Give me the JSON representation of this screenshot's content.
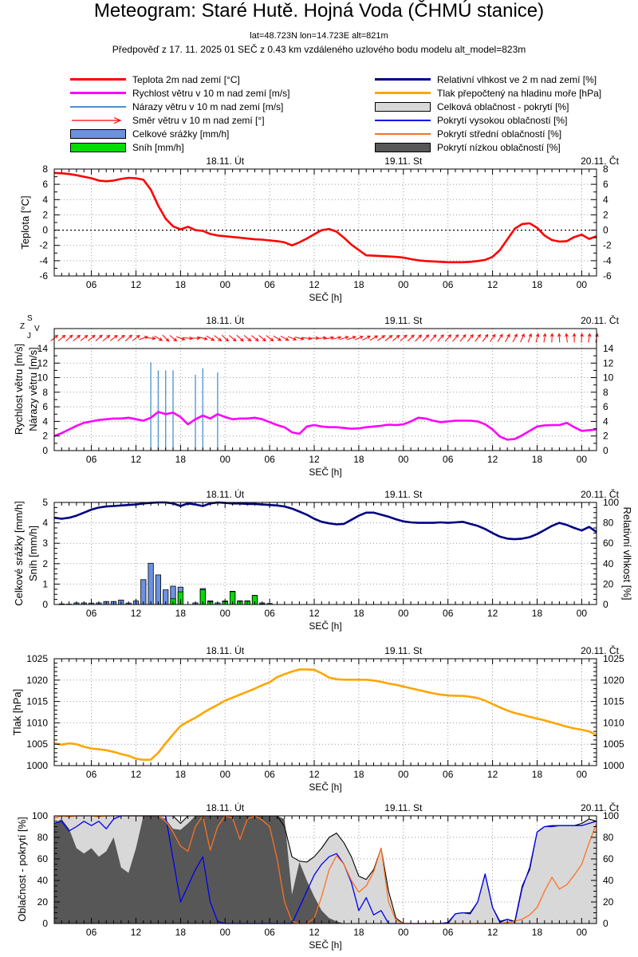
{
  "header": {
    "title": "Meteogram: Staré Hutě. Hojná Voda (ČHMÚ stanice)",
    "subtitle1": "lat=48.723N lon=14.723E alt=821m",
    "subtitle2": "Předpověď z 17. 11. 2025 01 SEČ z 0.43 km vzdáleného uzlového bodu modelu alt_model=823m"
  },
  "compass": {
    "north": "S",
    "east": "V",
    "south": "J",
    "west": "Z"
  },
  "legend": {
    "left": [
      {
        "name": "temperature",
        "label": "Teplota 2m nad zemí [°C]",
        "color": "#ff0000",
        "swatch": "line"
      },
      {
        "name": "wind-speed",
        "label": "Rychlost větru v 10 m nad zemí [m/s]",
        "color": "#ff00ff",
        "swatch": "line"
      },
      {
        "name": "wind-gusts",
        "label": "Nárazy větru v 10 m nad zemí [m/s]",
        "color": "#4a90d2",
        "swatch": "line-thin"
      },
      {
        "name": "wind-direction",
        "label": "Směr větru v 10 m nad zemí [°]",
        "color": "#ff0000",
        "swatch": "arrow"
      },
      {
        "name": "precipitation",
        "label": "Celkové srážky [mm/h]",
        "color": "#6b91e3",
        "swatch": "box"
      },
      {
        "name": "snow",
        "label": "Sníh [mm/h]",
        "color": "#00dd00",
        "swatch": "box"
      }
    ],
    "right": [
      {
        "name": "humidity",
        "label": "Relativní vlhkost ve 2 m nad zemí [%]",
        "color": "#000080",
        "swatch": "line"
      },
      {
        "name": "pressure",
        "label": "Tlak přepočtený na hladinu moře [hPa]",
        "color": "#ffa500",
        "swatch": "line"
      },
      {
        "name": "total-cloud",
        "label": "Celková oblačnost - pokrytí [%]",
        "color": "#d8d8d8",
        "swatch": "box"
      },
      {
        "name": "high-cloud",
        "label": "Pokrytí vysokou oblačností [%]",
        "color": "#0000ee",
        "swatch": "line-thin"
      },
      {
        "name": "mid-cloud",
        "label": "Pokrytí střední oblačností [%]",
        "color": "#ff7020",
        "swatch": "line-thin"
      },
      {
        "name": "low-cloud",
        "label": "Pokrytí nízkou oblačností [%]",
        "color": "#575757",
        "swatch": "box"
      }
    ]
  },
  "axis": {
    "x_title": "SEČ [h]",
    "hour_start": 1,
    "hour_end": 74,
    "x_ticks": [
      {
        "hour": 6,
        "label": "06"
      },
      {
        "hour": 12,
        "label": "12"
      },
      {
        "hour": 18,
        "label": "18"
      },
      {
        "hour": 24,
        "label": "00"
      },
      {
        "hour": 30,
        "label": "06"
      },
      {
        "hour": 36,
        "label": "12"
      },
      {
        "hour": 42,
        "label": "18"
      },
      {
        "hour": 48,
        "label": "00"
      },
      {
        "hour": 54,
        "label": "06"
      },
      {
        "hour": 60,
        "label": "12"
      },
      {
        "hour": 66,
        "label": "18"
      },
      {
        "hour": 72,
        "label": "00"
      }
    ],
    "day_labels": [
      {
        "hour": 24,
        "label": "18.11. Út"
      },
      {
        "hour": 48,
        "label": "19.11. St"
      },
      {
        "hour": 72,
        "label": "20.11. Čt"
      }
    ]
  },
  "chart_data": [
    {
      "id": "temperature",
      "type": "line",
      "ylabel": "Teplota [°C]",
      "ylim": [
        -6,
        8
      ],
      "ytick_step": 2,
      "zero_line": true,
      "series": [
        {
          "name": "Teplota 2m nad zemí [°C]",
          "color": "#ff0000",
          "values": [
            7.5,
            7.45,
            7.35,
            7.2,
            7.0,
            6.8,
            6.5,
            6.4,
            6.5,
            6.7,
            6.85,
            6.8,
            6.6,
            5.3,
            3.2,
            1.5,
            0.5,
            0.1,
            0.45,
            0.0,
            -0.1,
            -0.5,
            -0.7,
            -0.8,
            -0.9,
            -1.0,
            -1.1,
            -1.2,
            -1.25,
            -1.35,
            -1.45,
            -1.6,
            -2.0,
            -1.6,
            -1.1,
            -0.55,
            0.0,
            0.15,
            -0.2,
            -1.0,
            -1.9,
            -2.6,
            -3.3,
            -3.35,
            -3.4,
            -3.45,
            -3.5,
            -3.6,
            -3.8,
            -3.95,
            -4.05,
            -4.1,
            -4.15,
            -4.2,
            -4.2,
            -4.2,
            -4.15,
            -4.05,
            -3.9,
            -3.5,
            -2.6,
            -1.2,
            0.2,
            0.8,
            0.9,
            0.3,
            -0.7,
            -1.3,
            -1.5,
            -1.45,
            -0.9,
            -0.6,
            -1.15,
            -0.8
          ]
        }
      ]
    },
    {
      "id": "wind",
      "type": "line+impulse+vector",
      "ylabels": [
        "Rychlost větru [m/s]",
        "Nárazy větru [m/s]"
      ],
      "ylim": [
        0,
        14
      ],
      "ytick_step": 2,
      "series": [
        {
          "name": "Rychlost větru v 10 m nad zemí [m/s]",
          "color": "#ff00ff",
          "values": [
            2.0,
            2.4,
            2.9,
            3.4,
            3.8,
            4.0,
            4.2,
            4.3,
            4.4,
            4.4,
            4.5,
            4.3,
            4.1,
            4.5,
            5.3,
            5.0,
            5.2,
            4.6,
            3.6,
            4.3,
            4.8,
            4.4,
            5.0,
            4.6,
            4.3,
            4.4,
            4.4,
            4.5,
            4.3,
            3.9,
            3.5,
            3.2,
            2.5,
            2.3,
            3.3,
            3.5,
            3.3,
            3.2,
            3.2,
            3.1,
            3.0,
            3.05,
            3.2,
            3.3,
            3.4,
            3.55,
            3.5,
            3.6,
            4.0,
            4.5,
            4.4,
            4.1,
            3.9,
            4.0,
            4.1,
            4.1,
            4.1,
            4.0,
            3.6,
            2.9,
            1.9,
            1.5,
            1.6,
            2.1,
            2.7,
            3.3,
            3.45,
            3.5,
            3.5,
            3.8,
            3.2,
            2.7,
            2.8,
            2.9
          ]
        }
      ],
      "gusts": {
        "name": "Nárazy větru v 10 m nad zemí [m/s]",
        "color": "#4a90d2",
        "points": [
          [
            14,
            12.1
          ],
          [
            15,
            11.0
          ],
          [
            16,
            11.0
          ],
          [
            17,
            11.0
          ],
          [
            20,
            10.4
          ],
          [
            21,
            11.3
          ],
          [
            23,
            10.7
          ]
        ]
      },
      "wind_direction": {
        "name": "Směr větru v 10 m nad zemí [°]",
        "color": "#ff0000",
        "angles_deg_ccw_from_east": [
          40,
          40,
          42,
          40,
          38,
          40,
          42,
          40,
          38,
          40,
          42,
          38,
          20,
          -5,
          -30,
          -45,
          -40,
          -20,
          -5,
          0,
          -15,
          -30,
          -38,
          -42,
          -40,
          -42,
          -40,
          -38,
          -40,
          -38,
          -32,
          -28,
          -22,
          -15,
          -8,
          0,
          5,
          10,
          14,
          18,
          20,
          24,
          28,
          31,
          34,
          37,
          40,
          42,
          45,
          46,
          47,
          48,
          48,
          49,
          50,
          50,
          51,
          52,
          53,
          55,
          57,
          60,
          62,
          66,
          70,
          75,
          82,
          88,
          94,
          97,
          90,
          85,
          80,
          78
        ]
      }
    },
    {
      "id": "precipitation_humidity",
      "type": "bar+line",
      "ylabels_left": [
        "Celkové srážky [mm/h]",
        "Sníh [mm/h]"
      ],
      "ylim_left": [
        0,
        5
      ],
      "ylabel_right": "Relativní vlhkost [%]",
      "ylim_right": [
        0,
        100
      ],
      "ytick_step_right": 20,
      "rain_color": "#6b91e3",
      "snow_color": "#00dd00",
      "bars_hour_rain_snow": [
        [
          2,
          0.03,
          0
        ],
        [
          3,
          0.02,
          0
        ],
        [
          4,
          0.08,
          0
        ],
        [
          5,
          0.08,
          0
        ],
        [
          6,
          0.07,
          0
        ],
        [
          7,
          0.08,
          0
        ],
        [
          8,
          0.15,
          0
        ],
        [
          9,
          0.15,
          0
        ],
        [
          10,
          0.22,
          0
        ],
        [
          11,
          0.07,
          0
        ],
        [
          12,
          0.17,
          0
        ],
        [
          13,
          1.22,
          0
        ],
        [
          14,
          2.02,
          0
        ],
        [
          15,
          1.45,
          0
        ],
        [
          16,
          0.72,
          0
        ],
        [
          17,
          0.9,
          0.28
        ],
        [
          18,
          0.85,
          0.62
        ],
        [
          20,
          0.08,
          0
        ],
        [
          21,
          0.78,
          0.72
        ],
        [
          22,
          0.18,
          0.14
        ],
        [
          23,
          0.08,
          0
        ],
        [
          24,
          0.17,
          0.14
        ],
        [
          25,
          0.65,
          0.63
        ],
        [
          26,
          0.18,
          0.16
        ],
        [
          27,
          0.18,
          0.16
        ],
        [
          28,
          0.45,
          0.44
        ],
        [
          29,
          0.08,
          0.02
        ],
        [
          30,
          0.05,
          0
        ]
      ],
      "humidity": {
        "name": "Relativní vlhkost ve 2 m nad zemí [%]",
        "color": "#000080",
        "values": [
          85,
          84,
          85,
          87,
          90,
          93,
          95,
          96,
          96.5,
          97,
          97.5,
          98,
          99,
          99.5,
          100,
          100,
          99,
          96.5,
          99,
          98,
          96.5,
          99,
          100,
          99.5,
          99,
          99,
          98.5,
          98.5,
          98,
          97.5,
          97,
          96,
          94,
          91,
          88,
          84,
          81,
          79.5,
          78.5,
          79,
          83,
          87,
          90,
          90,
          88,
          86,
          83.5,
          81.5,
          80.5,
          80,
          80,
          80,
          80.5,
          80,
          80.5,
          81,
          79,
          77,
          74,
          70,
          66.5,
          64.5,
          64,
          64.5,
          66,
          69,
          73,
          77,
          80,
          78,
          75,
          72.5,
          76,
          71
        ]
      }
    },
    {
      "id": "pressure",
      "type": "line",
      "ylabel": "Tlak [hPa]",
      "ylim": [
        1000,
        1025
      ],
      "ytick_step": 5,
      "series": [
        {
          "name": "Tlak přepočtený na hladinu moře [hPa]",
          "color": "#ffa500",
          "values": [
            1005.2,
            1004.9,
            1005.2,
            1005.0,
            1004.4,
            1004.0,
            1003.8,
            1003.6,
            1003.2,
            1002.7,
            1002.3,
            1001.6,
            1001.35,
            1001.4,
            1003.0,
            1005.2,
            1007.3,
            1009.3,
            1010.3,
            1011.2,
            1012.3,
            1013.3,
            1014.2,
            1015.2,
            1015.9,
            1016.6,
            1017.3,
            1018.0,
            1018.8,
            1019.5,
            1020.7,
            1021.4,
            1022.0,
            1022.5,
            1022.5,
            1022.4,
            1021.6,
            1020.6,
            1020.2,
            1020.1,
            1020.1,
            1020.1,
            1020.1,
            1019.9,
            1019.6,
            1019.2,
            1018.9,
            1018.5,
            1018.1,
            1017.7,
            1017.3,
            1016.9,
            1016.6,
            1016.4,
            1016.35,
            1016.3,
            1016.1,
            1015.8,
            1015.2,
            1014.4,
            1013.6,
            1012.9,
            1012.3,
            1011.9,
            1011.4,
            1011.0,
            1010.6,
            1010.1,
            1009.6,
            1009.1,
            1008.7,
            1008.4,
            1008.0,
            1007.1
          ]
        }
      ]
    },
    {
      "id": "clouds",
      "type": "area+line",
      "ylabel": "Oblačnost - pokrytí [%]",
      "ylim": [
        0,
        100
      ],
      "ytick_step": 20,
      "total": {
        "name": "Celková oblačnost - pokrytí [%]",
        "fill": "#d8d8d8",
        "outline": "#000000",
        "values": [
          100,
          100,
          100,
          100,
          100,
          100,
          100,
          100,
          100,
          100,
          100,
          100,
          100,
          100,
          100,
          100,
          100,
          93,
          100,
          100,
          100,
          100,
          100,
          100,
          100,
          100,
          100,
          100,
          100,
          100,
          100,
          90,
          62,
          58,
          57,
          62,
          70,
          80,
          84,
          75,
          62,
          44,
          41,
          50,
          70,
          30,
          5,
          0,
          0,
          0,
          0,
          0,
          0,
          0,
          9,
          10,
          10,
          20,
          46,
          15,
          2,
          4,
          2,
          35,
          50,
          85,
          90,
          91,
          91,
          91,
          91,
          93,
          97,
          95
        ]
      },
      "low": {
        "name": "Pokrytí nízkou oblačností [%]",
        "fill": "#575757",
        "values": [
          93,
          97,
          88,
          70,
          65,
          70,
          62,
          67,
          80,
          52,
          47,
          70,
          100,
          100,
          100,
          97,
          88,
          87,
          93,
          100,
          100,
          100,
          100,
          100,
          100,
          100,
          100,
          100,
          100,
          100,
          100,
          97,
          27,
          57,
          40,
          25,
          12,
          5,
          2,
          0,
          0,
          0,
          0,
          0,
          0,
          0,
          0,
          0,
          0,
          0,
          0,
          0,
          0,
          0,
          0,
          0,
          0,
          0,
          0,
          0,
          0,
          0,
          0,
          0,
          0,
          0,
          0,
          0,
          0,
          0,
          0,
          0,
          0,
          0
        ]
      },
      "high": {
        "name": "Pokrytí vysokou oblačností [%]",
        "color": "#0000ee",
        "values": [
          93,
          95,
          86,
          90,
          95,
          91,
          95,
          88,
          97,
          100,
          100,
          100,
          100,
          100,
          100,
          100,
          60,
          20,
          35,
          50,
          62,
          20,
          2,
          0,
          0,
          0,
          0,
          0,
          0,
          0,
          0,
          0,
          0,
          15,
          30,
          45,
          55,
          62,
          65,
          55,
          38,
          12,
          24,
          8,
          12,
          0,
          0,
          0,
          0,
          0,
          0,
          0,
          0,
          1,
          9,
          10,
          9,
          20,
          46,
          15,
          1,
          4,
          1,
          33,
          52,
          85,
          90,
          90,
          91,
          91,
          91,
          91,
          93,
          95
        ]
      },
      "mid": {
        "name": "Pokrytí střední oblačností [%]",
        "color": "#ff7020",
        "values": [
          98,
          100,
          99,
          100,
          100,
          100,
          99,
          100,
          100,
          100,
          100,
          100,
          100,
          100,
          100,
          95,
          85,
          72,
          67,
          90,
          100,
          68,
          90,
          100,
          98,
          78,
          97,
          100,
          96,
          90,
          60,
          20,
          2,
          0,
          0,
          5,
          25,
          50,
          63,
          55,
          40,
          29,
          35,
          48,
          70,
          20,
          3,
          0,
          0,
          0,
          0,
          0,
          0,
          0,
          0,
          0,
          0,
          0,
          0,
          0,
          0,
          1,
          2,
          4,
          8,
          15,
          30,
          43,
          32,
          36,
          45,
          55,
          75,
          93
        ]
      }
    }
  ]
}
